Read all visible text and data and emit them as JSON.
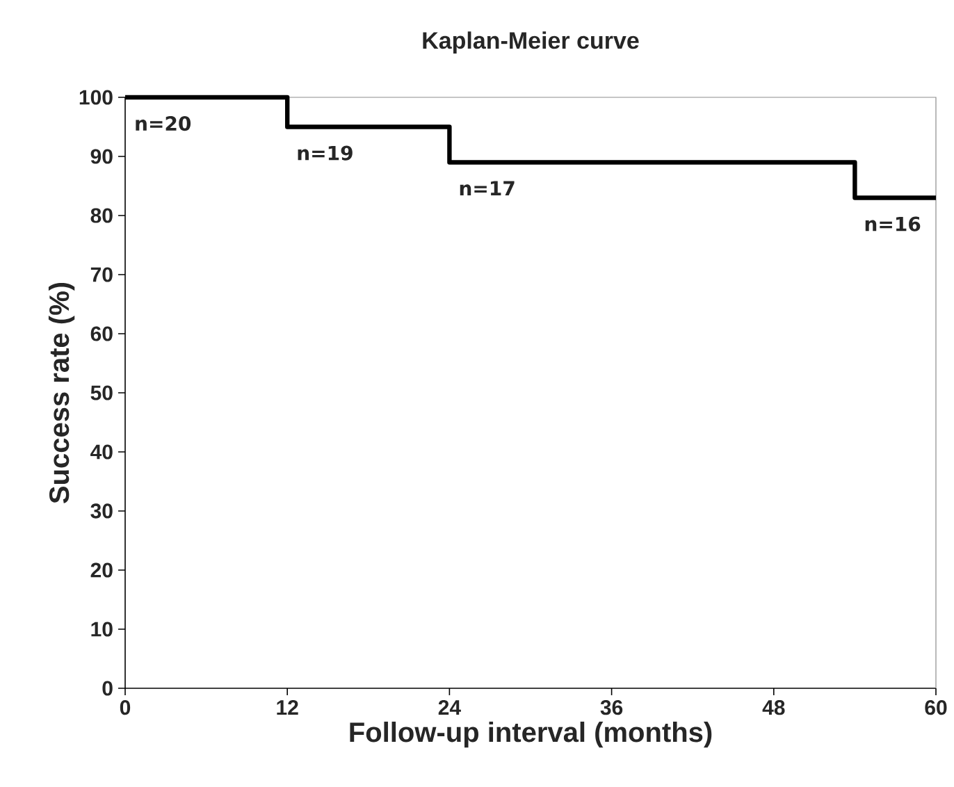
{
  "chart_data": {
    "type": "step",
    "title": "Kaplan-Meier curve",
    "xlabel": "Follow-up interval (months)",
    "ylabel": "Success rate (%)",
    "x": [
      0,
      12,
      24,
      54,
      60
    ],
    "series": [
      {
        "color": "#000000",
        "values": [
          100,
          95,
          89,
          83,
          83
        ]
      }
    ],
    "xlim": [
      0,
      60
    ],
    "xticks": [
      0,
      12,
      24,
      36,
      48,
      60
    ],
    "ylim": [
      0,
      100
    ],
    "yticks": [
      0,
      10,
      20,
      30,
      40,
      50,
      60,
      70,
      80,
      90,
      100
    ],
    "grid": false,
    "line_style": "solid",
    "marker": "none",
    "annotations": [
      {
        "text": "n=20",
        "x": 0,
        "y": 100
      },
      {
        "text": "n=19",
        "x": 12,
        "y": 95
      },
      {
        "text": "n=17",
        "x": 24,
        "y": 89
      },
      {
        "text": "n=16",
        "x": 54,
        "y": 83
      }
    ]
  }
}
